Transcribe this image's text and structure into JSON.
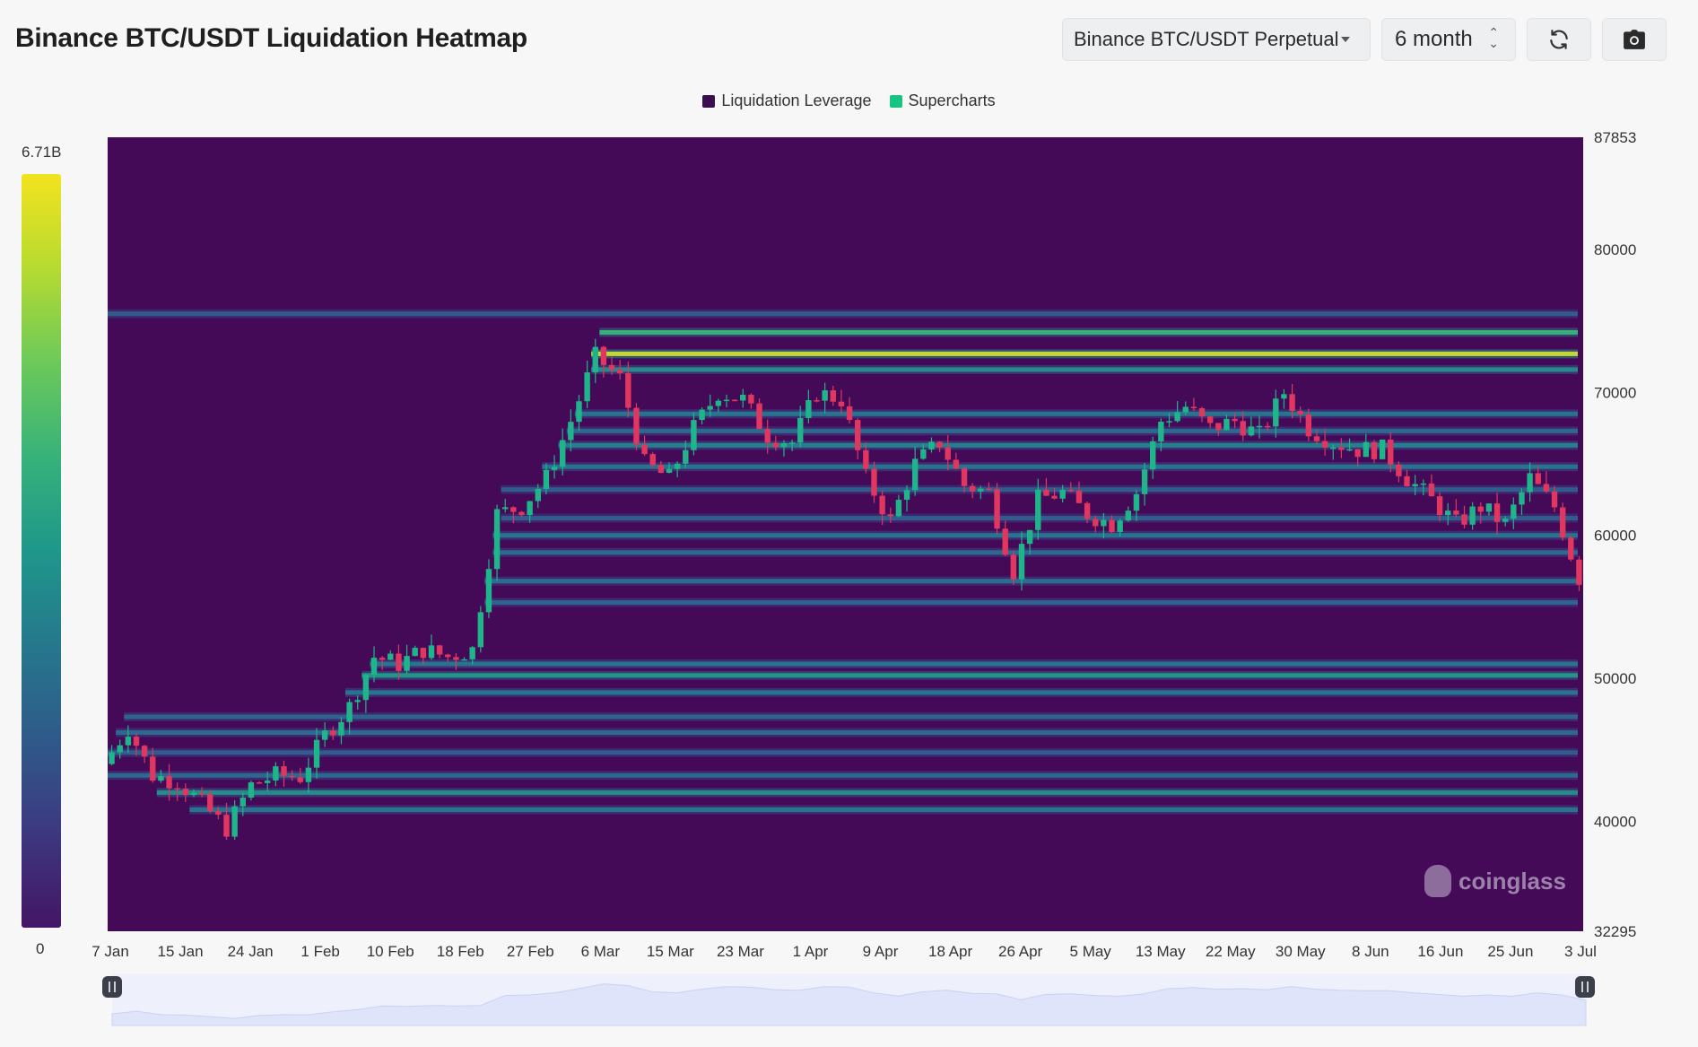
{
  "header": {
    "title": "Binance BTC/USDT Liquidation Heatmap",
    "market_select": "Binance BTC/USDT Perpetual",
    "range_select": "6 month",
    "refresh_icon": "refresh-icon",
    "camera_icon": "camera-icon"
  },
  "colorbar": {
    "max_label": "6.71B",
    "min_label": "0"
  },
  "watermark": "coinglass",
  "colors": {
    "background": "#440a57",
    "price_up": "#1fb58a",
    "price_down": "#e0365f",
    "slider": "#dfe4fb"
  },
  "chart_data": {
    "type": "heatmap",
    "legend": [
      {
        "name": "Liquidation Leverage",
        "color": "#3b0f4f"
      },
      {
        "name": "Supercharts",
        "color": "#19c483"
      }
    ],
    "legend_position": "top-center",
    "ylim": [
      32295,
      87853
    ],
    "y_ticks": [
      87853,
      80000,
      70000,
      60000,
      50000,
      40000,
      32295
    ],
    "x_ticks": [
      "7 Jan",
      "15 Jan",
      "24 Jan",
      "1 Feb",
      "10 Feb",
      "18 Feb",
      "27 Feb",
      "6 Mar",
      "15 Mar",
      "23 Mar",
      "1 Apr",
      "9 Apr",
      "18 Apr",
      "26 Apr",
      "5 May",
      "13 May",
      "22 May",
      "30 May",
      "8 Jun",
      "16 Jun",
      "25 Jun",
      "3 Jul"
    ],
    "price_series": {
      "name": "BTC/USDT",
      "days": [
        0,
        3,
        6,
        9,
        12,
        15,
        18,
        21,
        24,
        27,
        30,
        33,
        36,
        39,
        42,
        45,
        48,
        51,
        54,
        57,
        60,
        63,
        66,
        69,
        72,
        75,
        78,
        81,
        84,
        87,
        90,
        93,
        96,
        99,
        102,
        105,
        108,
        111,
        114,
        117,
        120,
        123,
        126,
        129,
        132,
        135,
        138,
        141,
        144,
        147,
        150,
        153,
        156,
        159,
        162,
        165,
        168,
        171,
        174,
        177,
        180
      ],
      "close": [
        44000,
        46500,
        43200,
        42800,
        41200,
        39500,
        42500,
        43200,
        43100,
        46000,
        48000,
        51500,
        51000,
        52000,
        51500,
        52000,
        61500,
        62000,
        64000,
        68000,
        72500,
        71000,
        65000,
        64000,
        67500,
        70000,
        69500,
        67000,
        66500,
        70000,
        69500,
        64000,
        61000,
        65000,
        66500,
        63500,
        63000,
        57500,
        62500,
        63000,
        61500,
        60800,
        63000,
        68000,
        69000,
        67500,
        68000,
        67000,
        70000,
        67500,
        66500,
        66000,
        66000,
        64000,
        62500,
        60800,
        62000,
        60800,
        64000,
        62000,
        57000
      ]
    },
    "liquidation_bands": [
      {
        "price": 40800,
        "intensity": 0.45
      },
      {
        "price": 42000,
        "intensity": 0.55
      },
      {
        "price": 43200,
        "intensity": 0.4
      },
      {
        "price": 44800,
        "intensity": 0.35
      },
      {
        "price": 46200,
        "intensity": 0.4
      },
      {
        "price": 47300,
        "intensity": 0.38
      },
      {
        "price": 49000,
        "intensity": 0.45
      },
      {
        "price": 50200,
        "intensity": 0.6
      },
      {
        "price": 51000,
        "intensity": 0.45
      },
      {
        "price": 55300,
        "intensity": 0.38
      },
      {
        "price": 56800,
        "intensity": 0.42
      },
      {
        "price": 58800,
        "intensity": 0.4
      },
      {
        "price": 60000,
        "intensity": 0.45
      },
      {
        "price": 61200,
        "intensity": 0.35
      },
      {
        "price": 63200,
        "intensity": 0.35
      },
      {
        "price": 64800,
        "intensity": 0.45
      },
      {
        "price": 66300,
        "intensity": 0.5
      },
      {
        "price": 67300,
        "intensity": 0.4
      },
      {
        "price": 68500,
        "intensity": 0.45
      },
      {
        "price": 71600,
        "intensity": 0.55
      },
      {
        "price": 72700,
        "intensity": 0.95
      },
      {
        "price": 74200,
        "intensity": 0.7
      },
      {
        "price": 75500,
        "intensity": 0.35
      }
    ]
  }
}
